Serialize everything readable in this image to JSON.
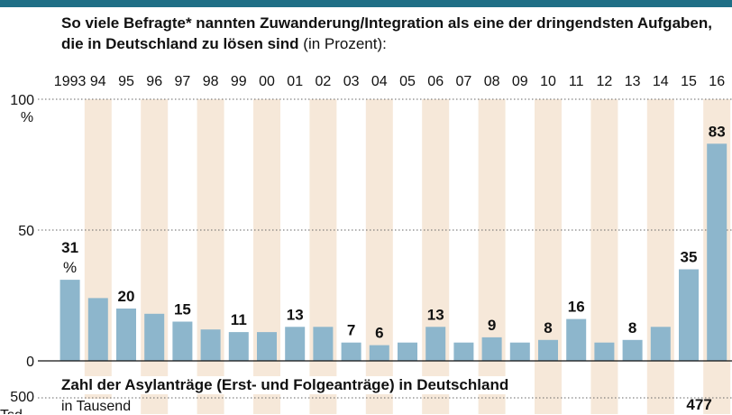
{
  "header": {
    "subtitle_bold": "So viele Befragte* nannten Zuwanderung/Integration als eine der dringendsten Aufgaben, die in Deutschland zu lösen sind",
    "subtitle_unit": "(in Prozent):"
  },
  "chart_data": {
    "type": "bar",
    "categories": [
      "1993",
      "94",
      "95",
      "96",
      "97",
      "98",
      "99",
      "00",
      "01",
      "02",
      "03",
      "04",
      "05",
      "06",
      "07",
      "08",
      "09",
      "10",
      "11",
      "12",
      "13",
      "14",
      "15",
      "16"
    ],
    "values": [
      31,
      24,
      20,
      18,
      15,
      12,
      11,
      11,
      13,
      13,
      7,
      6,
      7,
      13,
      7,
      9,
      7,
      8,
      16,
      7,
      8,
      13,
      35,
      83
    ],
    "data_labels": [
      "31\n%",
      "",
      "20",
      "",
      "15",
      "",
      "11",
      "",
      "13",
      "",
      "7",
      "6",
      "",
      "13",
      "",
      "9",
      "",
      "8",
      "16",
      "",
      "8",
      "",
      "35",
      "83"
    ],
    "y_ticks": [
      "100",
      "50",
      "0"
    ],
    "y_unit": "%",
    "ylim": [
      0,
      100
    ],
    "bar_color": "#8db6cc",
    "stripe_color": "#f6e8d9"
  },
  "lower_chart": {
    "title": "Zahl der Asylanträge (Erst- und Folgeanträge) in Deutschland",
    "subtitle": "in Tausend",
    "y_tick": "500",
    "y_unit_partial": "Tsd.",
    "value_label": "477"
  }
}
